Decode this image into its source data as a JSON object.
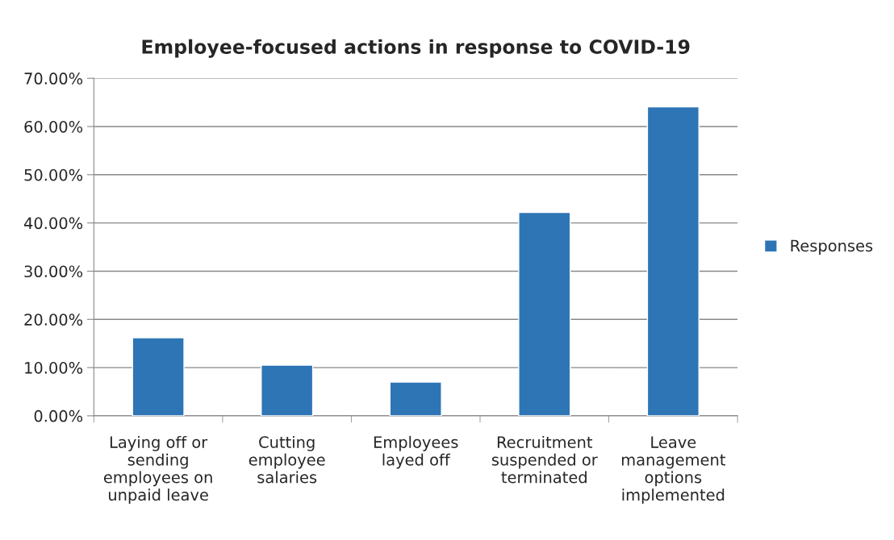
{
  "chart_data": {
    "type": "bar",
    "title": "Employee-focused actions in response to COVID-19",
    "categories": [
      "Laying off or\nsending\nemployees on\nunpaid leave",
      "Cutting\nemployee\nsalaries",
      "Employees\nlayed off",
      "Recruitment\nsuspended or\nterminated",
      "Leave\nmanagement\noptions\nimplemented"
    ],
    "series": [
      {
        "name": "Responses",
        "color": "#2e75b6",
        "values": [
          16.2,
          10.5,
          7.0,
          42.2,
          64.1
        ]
      }
    ],
    "ylim": [
      0,
      70
    ],
    "yticks": [
      {
        "value": 0,
        "label": "0.00%"
      },
      {
        "value": 10,
        "label": "10.00%"
      },
      {
        "value": 20,
        "label": "20.00%"
      },
      {
        "value": 30,
        "label": "30.00%"
      },
      {
        "value": 40,
        "label": "40.00%"
      },
      {
        "value": 50,
        "label": "50.00%"
      },
      {
        "value": 60,
        "label": "60.00%"
      },
      {
        "value": 70,
        "label": "70.00%"
      }
    ],
    "grid": "y",
    "legend": "right"
  }
}
